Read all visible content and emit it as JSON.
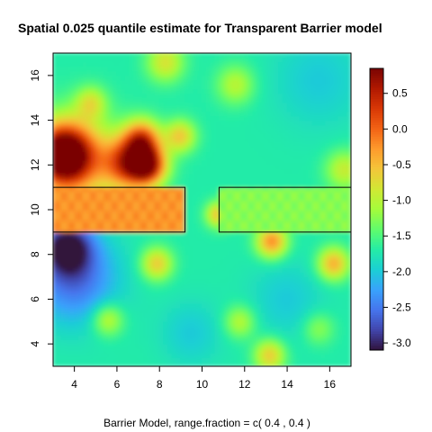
{
  "chart_data": {
    "type": "heatmap",
    "title": "Spatial 0.025 quantile estimate for Transparent Barrier model",
    "xlabel": "Barrier Model, range.fraction = c( 0.4 ,  0.4 )",
    "ylabel": "",
    "xlim": [
      3,
      17
    ],
    "ylim": [
      3,
      17
    ],
    "x_ticks": [
      4,
      6,
      8,
      10,
      12,
      14,
      16
    ],
    "y_ticks": [
      4,
      6,
      8,
      10,
      12,
      14,
      16
    ],
    "zlim": [
      -3.1,
      0.85
    ],
    "colorbar_ticks": [
      0.5,
      0.0,
      -0.5,
      -1.0,
      -1.5,
      -2.0,
      -2.5,
      -3.0
    ],
    "colorbar_labels": [
      "0.5",
      "0.0",
      "-0.5",
      "-1.0",
      "-1.5",
      "-2.0",
      "-2.5",
      "-3.0"
    ],
    "colormap": [
      "#30123b",
      "#4145ab",
      "#4675ed",
      "#39a2fc",
      "#1bcfd4",
      "#24eca6",
      "#61fc6c",
      "#a4fc3b",
      "#d1e834",
      "#f3c63a",
      "#fe9b2d",
      "#f36315",
      "#d93806",
      "#b11901",
      "#7a0403"
    ],
    "base_value": -1.7,
    "barriers": [
      {
        "x": [
          3,
          9.2
        ],
        "y": [
          9,
          11
        ]
      },
      {
        "x": [
          10.8,
          17
        ],
        "y": [
          9,
          11
        ]
      }
    ],
    "blobs": [
      {
        "x": 3.5,
        "y": 12.5,
        "value": 0.7,
        "radius": 0.9
      },
      {
        "x": 6.6,
        "y": 12.1,
        "value": 0.2,
        "radius": 0.8
      },
      {
        "x": 7.5,
        "y": 12.0,
        "value": 0.3,
        "radius": 0.6
      },
      {
        "x": 7.2,
        "y": 13.2,
        "value": -0.1,
        "radius": 0.6
      },
      {
        "x": 4.0,
        "y": 12.2,
        "value": -0.4,
        "radius": 1.4
      },
      {
        "x": 9.0,
        "y": 13.3,
        "value": -0.6,
        "radius": 0.5
      },
      {
        "x": 4.8,
        "y": 14.8,
        "value": -0.9,
        "radius": 0.5
      },
      {
        "x": 8.3,
        "y": 16.6,
        "value": -0.8,
        "radius": 0.6
      },
      {
        "x": 11.6,
        "y": 15.6,
        "value": -1.0,
        "radius": 0.6
      },
      {
        "x": 10.8,
        "y": 9.8,
        "value": -0.5,
        "radius": 0.4
      },
      {
        "x": 13.3,
        "y": 8.6,
        "value": -0.2,
        "radius": 0.5
      },
      {
        "x": 16.2,
        "y": 7.6,
        "value": -0.4,
        "radius": 0.5
      },
      {
        "x": 16.7,
        "y": 11.8,
        "value": -0.9,
        "radius": 0.6
      },
      {
        "x": 7.9,
        "y": 7.6,
        "value": -0.6,
        "radius": 0.5
      },
      {
        "x": 5.6,
        "y": 5.1,
        "value": -0.9,
        "radius": 0.5
      },
      {
        "x": 13.2,
        "y": 3.5,
        "value": -0.6,
        "radius": 0.5
      },
      {
        "x": 11.8,
        "y": 5.0,
        "value": -1.0,
        "radius": 0.5
      },
      {
        "x": 15.5,
        "y": 4.7,
        "value": -1.2,
        "radius": 0.5
      },
      {
        "x": 4.0,
        "y": 7.0,
        "value": -2.6,
        "radius": 1.4
      },
      {
        "x": 3.7,
        "y": 8.4,
        "value": -3.0,
        "radius": 0.8
      },
      {
        "x": 15.5,
        "y": 15.8,
        "value": -2.0,
        "radius": 1.5
      },
      {
        "x": 14.0,
        "y": 6.0,
        "value": -2.0,
        "radius": 1.2
      },
      {
        "x": 9.5,
        "y": 4.5,
        "value": -2.0,
        "radius": 1.0
      }
    ],
    "barrier_values": [
      {
        "x": [
          3,
          9.2
        ],
        "y": [
          9,
          11
        ],
        "value": -0.25
      },
      {
        "x": [
          10.8,
          17
        ],
        "y": [
          9,
          11
        ],
        "value": -1.25
      }
    ]
  }
}
